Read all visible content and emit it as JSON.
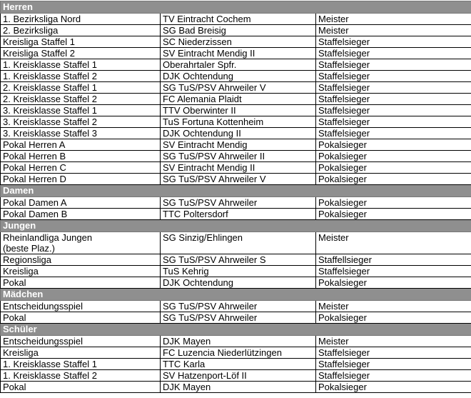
{
  "colors": {
    "section_header_bg": "#8f8f8f",
    "section_header_text": "#ffffff"
  },
  "sections": [
    {
      "title": "Herren",
      "rows": [
        [
          "1. Bezirksliga Nord",
          "TV Eintracht Cochem",
          "Meister"
        ],
        [
          "2. Bezirksliga",
          "SG Bad Breisig",
          "Meister"
        ],
        [
          "Kreisliga Staffel 1",
          "SC Niederzissen",
          "Staffelsieger"
        ],
        [
          "Kreisliga Staffel 2",
          "SV Eintracht Mendig II",
          "Staffelsieger"
        ],
        [
          "1. Kreisklasse Staffel 1",
          "Oberahrtaler Spfr.",
          "Staffelsieger"
        ],
        [
          "1. Kreisklasse Staffel 2",
          "DJK Ochtendung",
          "Staffelsieger"
        ],
        [
          "2. Kreisklasse Staffel 1",
          "SG TuS/PSV Ahrweiler V",
          "Staffelsieger"
        ],
        [
          "2. Kreisklasse Staffel 2",
          "FC Alemania Plaidt",
          "Staffelsieger"
        ],
        [
          "3. Kreisklasse Staffel 1",
          "TTV Oberwinter II",
          "Staffelsieger"
        ],
        [
          "3. Kreisklasse Staffel 2",
          "TuS Fortuna Kottenheim",
          "Staffelsieger"
        ],
        [
          "3. Kreisklasse Staffel 3",
          "DJK Ochtendung II",
          "Staffelsieger"
        ],
        [
          "Pokal Herren A",
          "SV Eintracht Mendig",
          "Pokalsieger"
        ],
        [
          "Pokal Herren B",
          "SG TuS/PSV Ahrweiler II",
          "Pokalsieger"
        ],
        [
          "Pokal Herren C",
          "SV Eintracht Mendig II",
          "Pokalsieger"
        ],
        [
          "Pokal Herren D",
          "SG TuS/PSV Ahrweiler V",
          "Pokalsieger"
        ]
      ]
    },
    {
      "title": "Damen",
      "rows": [
        [
          "Pokal Damen A",
          "SG TuS/PSV Ahrweiler",
          "Pokalsieger"
        ],
        [
          "Pokal Damen B",
          "TTC Poltersdorf",
          "Pokalsieger"
        ]
      ]
    },
    {
      "title": "Jungen",
      "rows": [
        [
          "Rheinlandliga Jungen\n(beste Plaz.)",
          "SG Sinzig/Ehlingen",
          "Meister"
        ],
        [
          "Regionsliga",
          "SG TuS/PSV Ahrweiler S",
          "Staffellsieger"
        ],
        [
          "Kreisliga",
          "TuS Kehrig",
          "Staffelsieger"
        ],
        [
          "Pokal",
          "DJK Ochtendung",
          "Pokalsieger"
        ]
      ]
    },
    {
      "title": "Mädchen",
      "rows": [
        [
          "Entscheidungsspiel",
          "SG TuS/PSV Ahrweiler",
          "Meister"
        ],
        [
          "Pokal",
          "SG TuS/PSV Ahrweiler",
          "Pokalsieger"
        ]
      ]
    },
    {
      "title": "Schüler",
      "rows": [
        [
          "Entscheidungsspiel",
          "DJK Mayen",
          "Meister"
        ],
        [
          "Kreisliga",
          "FC Luzencia Niederlützingen",
          "Staffelsieger"
        ],
        [
          "1. Kreisklasse Staffel 1",
          "TTC Karla",
          "Staffelsieger"
        ],
        [
          "1. Kreisklasse Staffel 2",
          "SV Hatzenport-Löf II",
          "Staffelsieger"
        ],
        [
          "Pokal",
          "DJK Mayen",
          "Pokalsieger"
        ]
      ]
    }
  ]
}
